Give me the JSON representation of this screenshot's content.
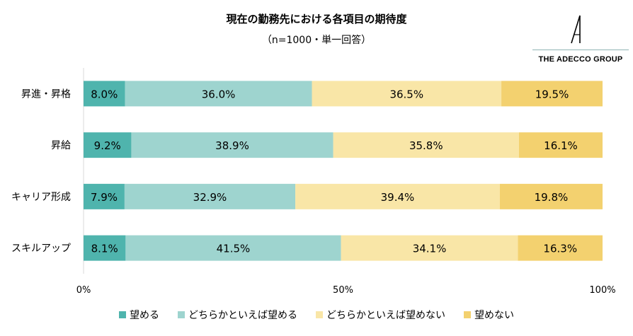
{
  "chart_data": {
    "type": "bar",
    "orientation": "horizontal",
    "stacked": true,
    "title": "現在の勤務先における各項目の期待度",
    "subtitle": "（n=1000・単一回答）",
    "categories": [
      "昇進・昇格",
      "昇給",
      "キャリア形成",
      "スキルアップ"
    ],
    "series": [
      {
        "name": "望める",
        "color": "#4fb4ad",
        "values": [
          8.0,
          9.2,
          7.9,
          8.1
        ]
      },
      {
        "name": "どちらかといえば望める",
        "color": "#9ed4cf",
        "values": [
          36.0,
          38.9,
          32.9,
          41.5
        ]
      },
      {
        "name": "どちらかといえば望めない",
        "color": "#f9e6a7",
        "values": [
          36.5,
          35.8,
          39.4,
          34.1
        ]
      },
      {
        "name": "望めない",
        "color": "#f3d16f",
        "values": [
          19.5,
          16.1,
          19.8,
          16.3
        ]
      }
    ],
    "x_ticks": [
      "0%",
      "50%",
      "100%"
    ],
    "xlim": [
      0,
      100
    ],
    "grid": false,
    "legend_position": "bottom"
  },
  "brand": {
    "name": "THE ADECCO GROUP"
  }
}
